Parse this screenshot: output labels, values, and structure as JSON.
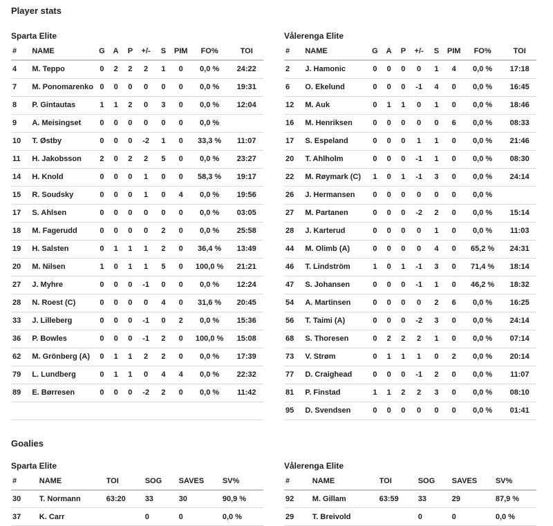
{
  "sections": {
    "players_title": "Player stats",
    "goalies_title": "Goalies"
  },
  "skater_headers": [
    "#",
    "NAME",
    "G",
    "A",
    "P",
    "+/-",
    "S",
    "PIM",
    "FO%",
    "TOI"
  ],
  "goalie_headers": [
    "#",
    "NAME",
    "TOI",
    "SOG",
    "SAVES",
    "SV%"
  ],
  "teams": [
    {
      "name": "Sparta Elite",
      "skaters": [
        [
          "4",
          "M. Teppo",
          "0",
          "2",
          "2",
          "2",
          "1",
          "0",
          "0,0 %",
          "24:22"
        ],
        [
          "7",
          "M. Ponomarenko",
          "0",
          "0",
          "0",
          "0",
          "0",
          "0",
          "0,0 %",
          "19:31"
        ],
        [
          "8",
          "P. Gintautas",
          "1",
          "1",
          "2",
          "0",
          "3",
          "0",
          "0,0 %",
          "12:04"
        ],
        [
          "9",
          "A. Meisingset",
          "0",
          "0",
          "0",
          "0",
          "0",
          "0",
          "0,0 %",
          ""
        ],
        [
          "10",
          "T. Østby",
          "0",
          "0",
          "0",
          "-2",
          "1",
          "0",
          "33,3 %",
          "11:07"
        ],
        [
          "11",
          "H. Jakobsson",
          "2",
          "0",
          "2",
          "2",
          "5",
          "0",
          "0,0 %",
          "23:27"
        ],
        [
          "14",
          "H. Knold",
          "0",
          "0",
          "0",
          "1",
          "0",
          "0",
          "58,3 %",
          "19:17"
        ],
        [
          "15",
          "R. Soudsky",
          "0",
          "0",
          "0",
          "1",
          "0",
          "4",
          "0,0 %",
          "19:56"
        ],
        [
          "17",
          "S. Ahlsen",
          "0",
          "0",
          "0",
          "0",
          "0",
          "0",
          "0,0 %",
          "03:05"
        ],
        [
          "18",
          "M. Fagerudd",
          "0",
          "0",
          "0",
          "0",
          "2",
          "0",
          "0,0 %",
          "25:58"
        ],
        [
          "19",
          "H. Salsten",
          "0",
          "1",
          "1",
          "1",
          "2",
          "0",
          "36,4 %",
          "13:49"
        ],
        [
          "20",
          "M. Nilsen",
          "1",
          "0",
          "1",
          "1",
          "5",
          "0",
          "100,0 %",
          "21:21"
        ],
        [
          "27",
          "J. Myhre",
          "0",
          "0",
          "0",
          "-1",
          "0",
          "0",
          "0,0 %",
          "12:24"
        ],
        [
          "28",
          "N. Roest (C)",
          "0",
          "0",
          "0",
          "0",
          "4",
          "0",
          "31,6 %",
          "20:45"
        ],
        [
          "33",
          "J. Lilleberg",
          "0",
          "0",
          "0",
          "-1",
          "0",
          "2",
          "0,0 %",
          "15:36"
        ],
        [
          "36",
          "P. Bowles",
          "0",
          "0",
          "0",
          "-1",
          "2",
          "0",
          "100,0 %",
          "15:08"
        ],
        [
          "62",
          "M. Grönberg (A)",
          "0",
          "1",
          "1",
          "2",
          "2",
          "0",
          "0,0 %",
          "17:39"
        ],
        [
          "79",
          "L. Lundberg",
          "0",
          "1",
          "1",
          "0",
          "4",
          "4",
          "0,0 %",
          "22:32"
        ],
        [
          "89",
          "E. Børresen",
          "0",
          "0",
          "0",
          "-2",
          "2",
          "0",
          "0,0 %",
          "11:42"
        ]
      ],
      "goalies": [
        [
          "30",
          "T. Normann",
          "63:20",
          "33",
          "30",
          "90,9 %"
        ],
        [
          "37",
          "K. Carr",
          "",
          "0",
          "0",
          "0,0 %"
        ]
      ]
    },
    {
      "name": "Vålerenga Elite",
      "skaters": [
        [
          "2",
          "J. Hamonic",
          "0",
          "0",
          "0",
          "0",
          "1",
          "4",
          "0,0 %",
          "17:18"
        ],
        [
          "6",
          "O. Ekelund",
          "0",
          "0",
          "0",
          "-1",
          "4",
          "0",
          "0,0 %",
          "16:45"
        ],
        [
          "12",
          "M. Auk",
          "0",
          "1",
          "1",
          "0",
          "1",
          "0",
          "0,0 %",
          "18:46"
        ],
        [
          "16",
          "M. Henriksen",
          "0",
          "0",
          "0",
          "0",
          "0",
          "6",
          "0,0 %",
          "08:33"
        ],
        [
          "17",
          "S. Espeland",
          "0",
          "0",
          "0",
          "1",
          "1",
          "0",
          "0,0 %",
          "21:46"
        ],
        [
          "20",
          "T. Ahlholm",
          "0",
          "0",
          "0",
          "-1",
          "1",
          "0",
          "0,0 %",
          "08:30"
        ],
        [
          "22",
          "M. Røymark (C)",
          "1",
          "0",
          "1",
          "-1",
          "3",
          "0",
          "0,0 %",
          "24:14"
        ],
        [
          "26",
          "J. Hermansen",
          "0",
          "0",
          "0",
          "0",
          "0",
          "0",
          "0,0 %",
          ""
        ],
        [
          "27",
          "M. Partanen",
          "0",
          "0",
          "0",
          "-2",
          "2",
          "0",
          "0,0 %",
          "15:14"
        ],
        [
          "28",
          "J. Karterud",
          "0",
          "0",
          "0",
          "0",
          "1",
          "0",
          "0,0 %",
          "11:03"
        ],
        [
          "44",
          "M. Olimb (A)",
          "0",
          "0",
          "0",
          "0",
          "4",
          "0",
          "65,2 %",
          "24:31"
        ],
        [
          "46",
          "T. Lindström",
          "1",
          "0",
          "1",
          "-1",
          "3",
          "0",
          "71,4 %",
          "18:14"
        ],
        [
          "47",
          "S. Johansen",
          "0",
          "0",
          "0",
          "-1",
          "1",
          "0",
          "46,2 %",
          "18:32"
        ],
        [
          "54",
          "A. Martinsen",
          "0",
          "0",
          "0",
          "0",
          "2",
          "6",
          "0,0 %",
          "16:25"
        ],
        [
          "56",
          "T. Taimi (A)",
          "0",
          "0",
          "0",
          "-2",
          "3",
          "0",
          "0,0 %",
          "24:14"
        ],
        [
          "68",
          "S. Thoresen",
          "0",
          "2",
          "2",
          "2",
          "1",
          "0",
          "0,0 %",
          "07:14"
        ],
        [
          "73",
          "V. Strøm",
          "0",
          "1",
          "1",
          "1",
          "0",
          "2",
          "0,0 %",
          "20:14"
        ],
        [
          "77",
          "D. Craighead",
          "0",
          "0",
          "0",
          "-1",
          "2",
          "0",
          "0,0 %",
          "11:07"
        ],
        [
          "81",
          "P. Finstad",
          "1",
          "1",
          "2",
          "2",
          "3",
          "0",
          "0,0 %",
          "08:10"
        ],
        [
          "95",
          "D. Svendsen",
          "0",
          "0",
          "0",
          "0",
          "0",
          "0",
          "0,0 %",
          "01:41"
        ]
      ],
      "goalies": [
        [
          "92",
          "M. Gillam",
          "63:59",
          "33",
          "29",
          "87,9 %"
        ],
        [
          "29",
          "T. Breivold",
          "",
          "0",
          "0",
          "0,0 %"
        ]
      ]
    }
  ],
  "colors": {
    "background": "#ffffff",
    "text": "#1e1e1e",
    "header_rule": "#c6c6c6",
    "row_rule": "#d9d9d9"
  }
}
